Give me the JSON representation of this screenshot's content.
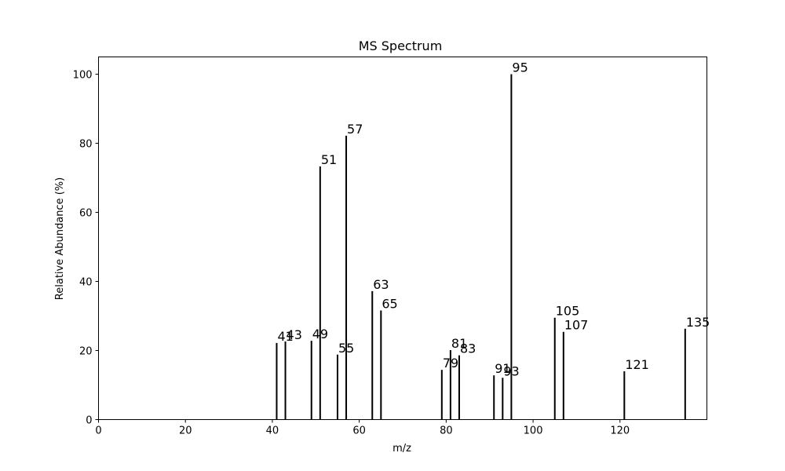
{
  "chart_data": {
    "type": "bar",
    "title": "MS Spectrum",
    "xlabel": "m/z",
    "ylabel": "Relative Abundance (%)",
    "xlim": [
      0,
      140
    ],
    "ylim": [
      0,
      105
    ],
    "xticks": [
      0,
      20,
      40,
      60,
      80,
      100,
      120
    ],
    "yticks": [
      0,
      20,
      40,
      60,
      80,
      100
    ],
    "grid": false,
    "bar_color": "#000000",
    "x": [
      41,
      43,
      49,
      51,
      55,
      57,
      63,
      65,
      79,
      81,
      83,
      91,
      93,
      95,
      105,
      107,
      121,
      135
    ],
    "values": [
      22.2,
      22.6,
      22.8,
      73.3,
      18.8,
      82.2,
      37.2,
      31.6,
      14.4,
      20.1,
      18.6,
      12.8,
      12.1,
      100.0,
      29.5,
      25.4,
      14.0,
      26.3
    ],
    "peak_labels": [
      "41",
      "43",
      "49",
      "51",
      "55",
      "57",
      "63",
      "65",
      "79",
      "81",
      "83",
      "91",
      "93",
      "95",
      "105",
      "107",
      "121",
      "135"
    ]
  }
}
